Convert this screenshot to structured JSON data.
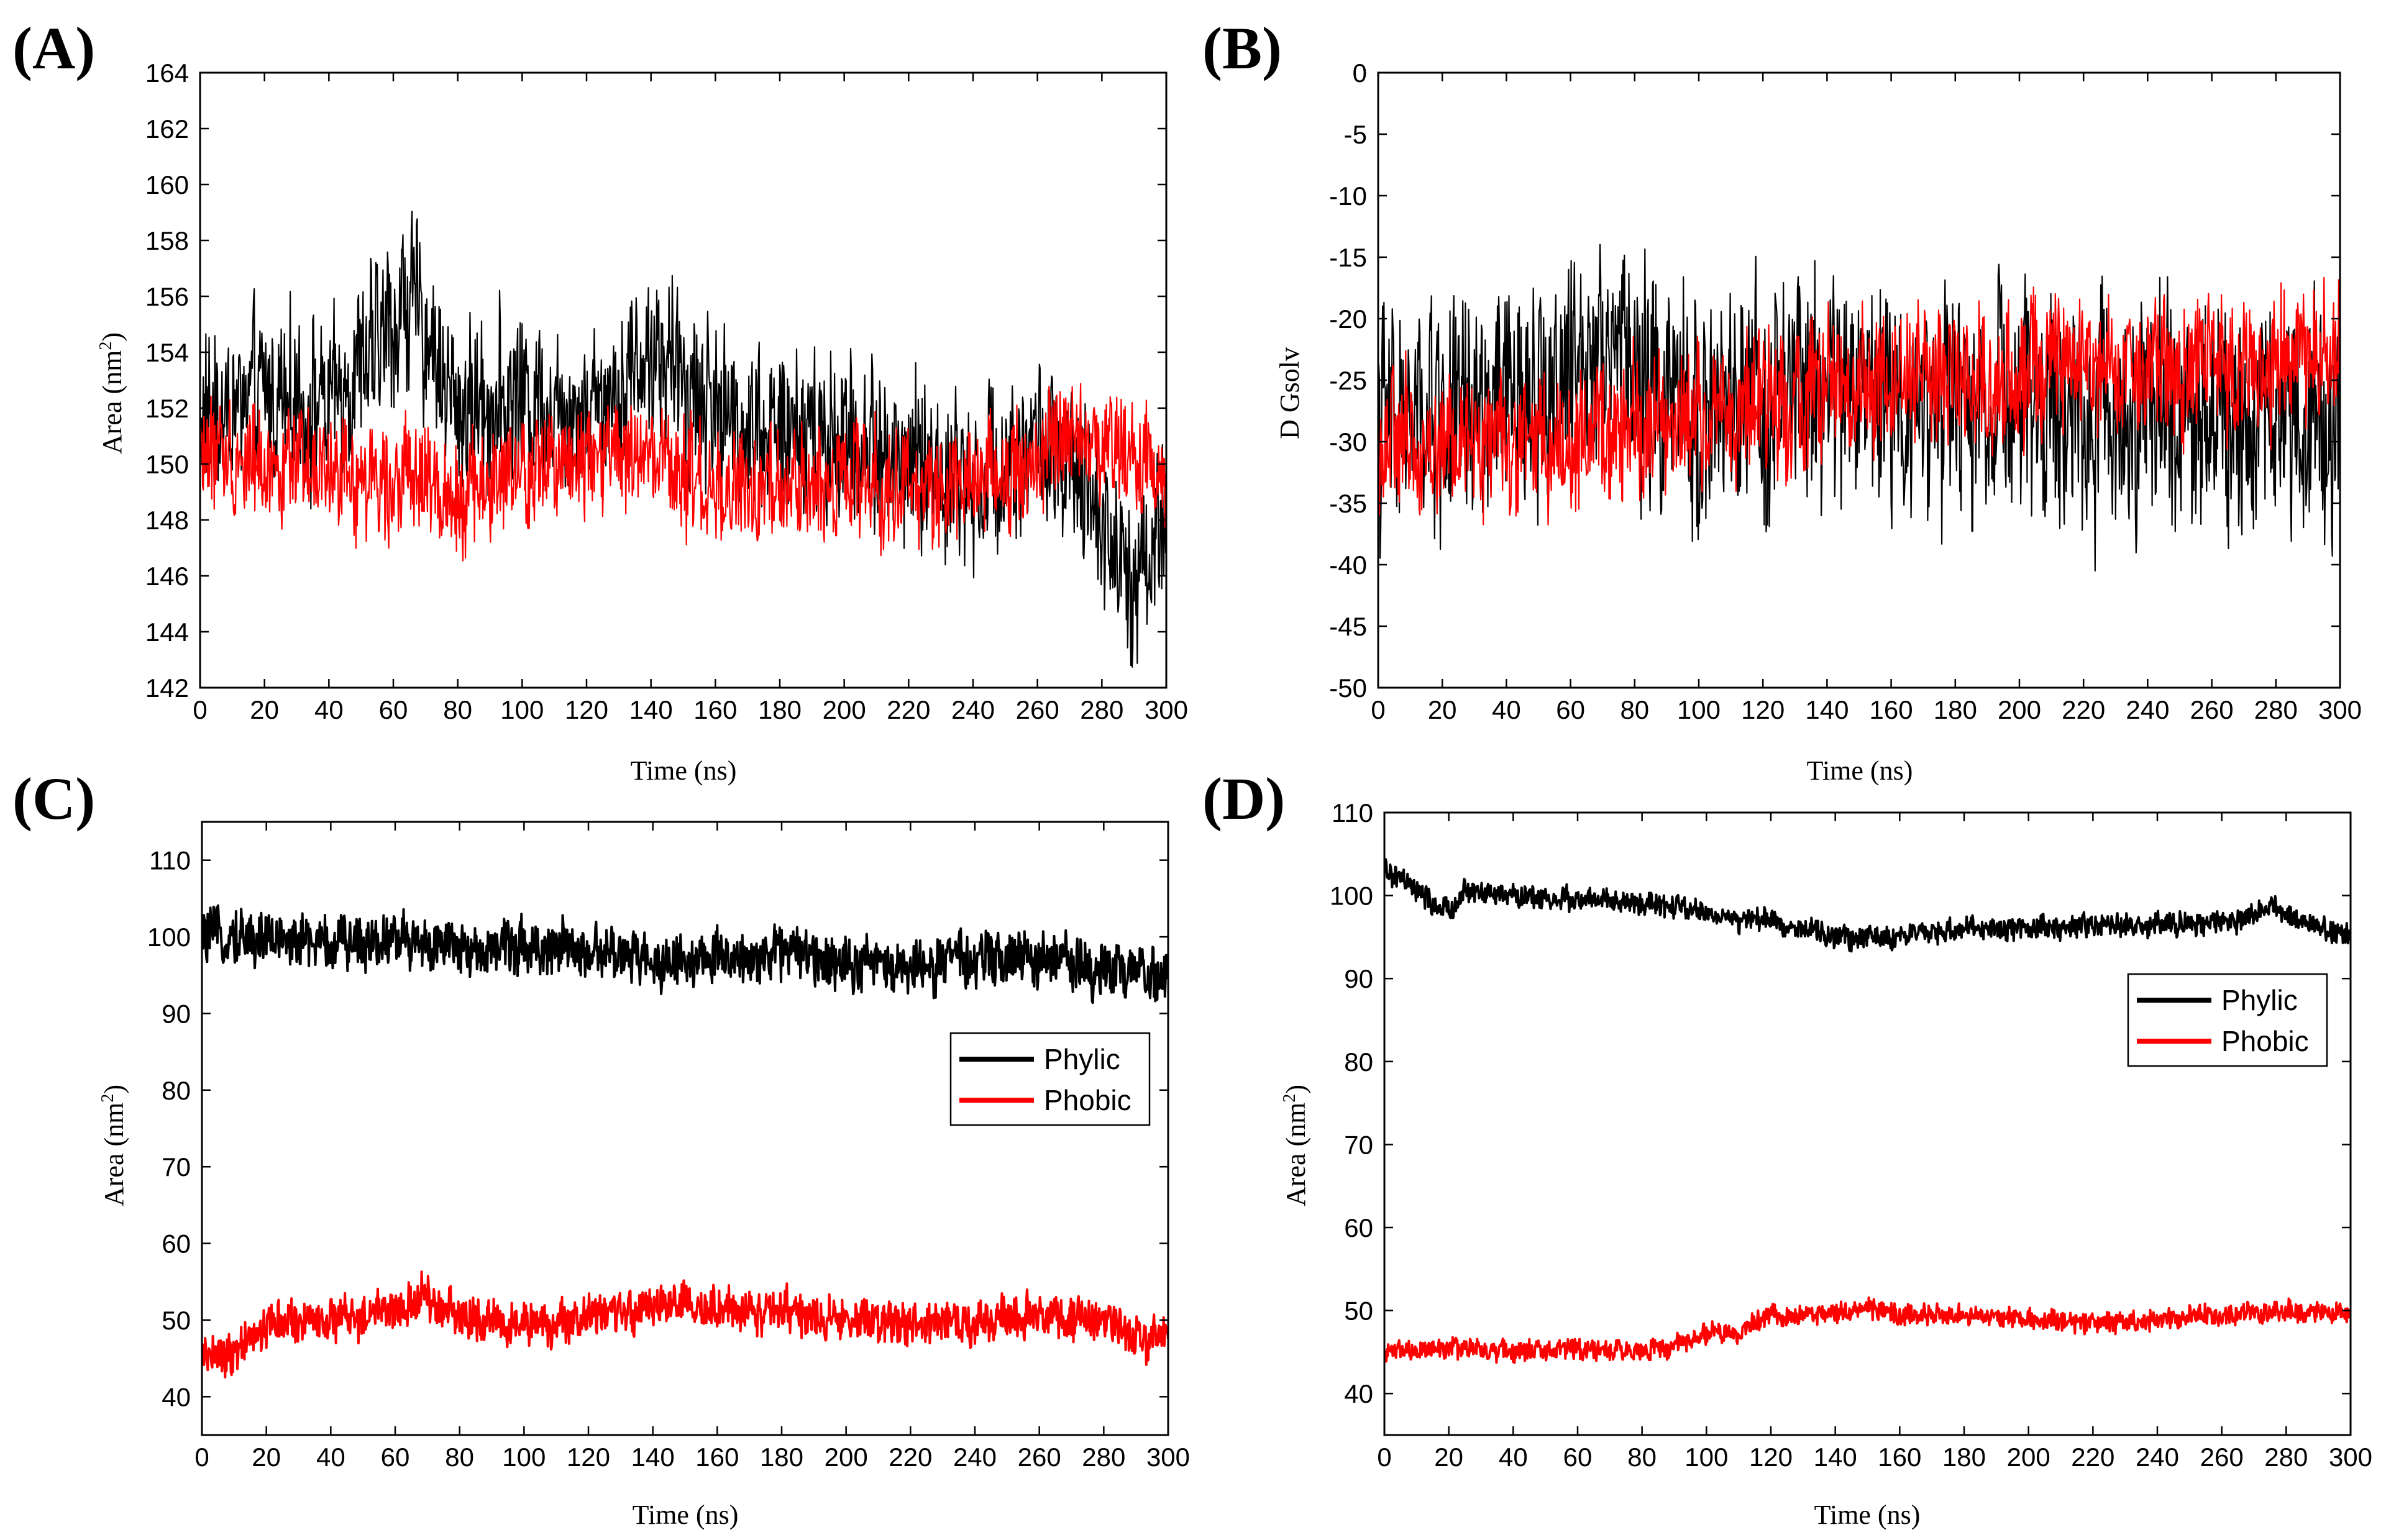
{
  "colors": {
    "phylic": "#000000",
    "phobic": "#ff0000",
    "frame": "#000000",
    "background": "#ffffff"
  },
  "chart_data": [
    {
      "panel": "(A)",
      "type": "line",
      "title": "",
      "xlabel": "Time (ns)",
      "ylabel": "Area (nm2)",
      "ylabel_main": "Area (nm",
      "ylabel_sup": "2",
      "ylabel_tail": ")",
      "xlim": [
        0,
        300
      ],
      "ylim": [
        142,
        164
      ],
      "xticks": [
        0,
        20,
        40,
        60,
        80,
        100,
        120,
        140,
        160,
        180,
        200,
        220,
        240,
        260,
        280,
        300
      ],
      "yticks": [
        142,
        144,
        146,
        148,
        150,
        152,
        154,
        156,
        158,
        160,
        162,
        164
      ],
      "legend": null,
      "series": [
        {
          "name": "Phylic",
          "color": "#000000",
          "x": [
            0,
            20,
            40,
            60,
            65,
            80,
            100,
            120,
            140,
            160,
            180,
            200,
            220,
            240,
            260,
            280,
            290,
            300
          ],
          "values": [
            151.5,
            152.5,
            152,
            155,
            156,
            152,
            152.5,
            152,
            154,
            152,
            151,
            151,
            150,
            149.5,
            151,
            148,
            146,
            148
          ],
          "noise": 2.4
        },
        {
          "name": "Phobic",
          "color": "#ff0000",
          "x": [
            0,
            20,
            40,
            60,
            80,
            100,
            120,
            140,
            160,
            180,
            200,
            220,
            240,
            260,
            270,
            280,
            300
          ],
          "values": [
            150.5,
            150,
            149.5,
            149.5,
            149,
            149.5,
            150.5,
            150,
            149,
            149,
            149.5,
            149,
            149.5,
            150,
            151,
            150.5,
            150
          ],
          "noise": 1.6
        }
      ]
    },
    {
      "panel": "(B)",
      "type": "line",
      "title": "",
      "xlabel": "Time (ns)",
      "ylabel": "D Gsolv",
      "xlim": [
        0,
        300
      ],
      "ylim": [
        -50,
        0
      ],
      "xticks": [
        0,
        20,
        40,
        60,
        80,
        100,
        120,
        140,
        160,
        180,
        200,
        220,
        240,
        260,
        280,
        300
      ],
      "yticks": [
        -50,
        -45,
        -40,
        -35,
        -30,
        -25,
        -20,
        -15,
        -10,
        -5,
        0
      ],
      "legend": null,
      "series": [
        {
          "name": "Phylic",
          "color": "#000000",
          "x": [
            0,
            20,
            40,
            60,
            70,
            80,
            100,
            120,
            140,
            160,
            180,
            200,
            220,
            240,
            260,
            280,
            300
          ],
          "values": [
            -29,
            -28,
            -27,
            -25,
            -20,
            -25,
            -28,
            -27,
            -25,
            -26,
            -27,
            -27,
            -28,
            -27,
            -28,
            -27,
            -28
          ],
          "noise": 7.5
        },
        {
          "name": "Phobic",
          "color": "#ff0000",
          "x": [
            0,
            20,
            40,
            60,
            80,
            100,
            120,
            140,
            160,
            180,
            200,
            220,
            240,
            260,
            280,
            300
          ],
          "values": [
            -30,
            -30,
            -30,
            -30,
            -29,
            -28,
            -27,
            -25.5,
            -25,
            -25,
            -24.5,
            -24.5,
            -24,
            -24,
            -23.5,
            -23
          ],
          "noise": 4.5
        }
      ]
    },
    {
      "panel": "(C)",
      "type": "line",
      "title": "",
      "xlabel": "Time (ns)",
      "ylabel": "Area (nm2)",
      "ylabel_main": "Area (nm",
      "ylabel_sup": "2",
      "ylabel_tail": ")",
      "xlim": [
        0,
        300
      ],
      "ylim": [
        35,
        115
      ],
      "xticks": [
        0,
        20,
        40,
        60,
        80,
        100,
        120,
        140,
        160,
        180,
        200,
        220,
        240,
        260,
        280,
        300
      ],
      "yticks": [
        40,
        50,
        60,
        70,
        80,
        90,
        100,
        110
      ],
      "legend": {
        "position": "center-right",
        "entries": [
          "Phylic",
          "Phobic"
        ]
      },
      "series": [
        {
          "name": "Phylic",
          "color": "#000000",
          "x": [
            0,
            20,
            40,
            60,
            80,
            100,
            120,
            140,
            160,
            180,
            200,
            220,
            240,
            260,
            280,
            300
          ],
          "values": [
            100,
            100,
            99,
            100,
            98,
            99,
            98,
            97,
            97,
            98,
            97,
            96,
            97,
            97,
            96,
            95
          ],
          "noise": 2.8
        },
        {
          "name": "Phobic",
          "color": "#ff0000",
          "x": [
            0,
            10,
            15,
            20,
            40,
            60,
            70,
            80,
            100,
            110,
            120,
            140,
            150,
            160,
            180,
            200,
            220,
            240,
            260,
            280,
            300
          ],
          "values": [
            45,
            45.5,
            47,
            49.5,
            50,
            51.5,
            53,
            50.5,
            49.5,
            49,
            50.5,
            51.5,
            52,
            51,
            51,
            50,
            49.5,
            49.5,
            51,
            49.5,
            47
          ],
          "noise": 2.3
        }
      ]
    },
    {
      "panel": "(D)",
      "type": "line",
      "title": "",
      "xlabel": "Time (ns)",
      "ylabel": "Area (nm2)",
      "ylabel_main": "Area (nm",
      "ylabel_sup": "2",
      "ylabel_tail": ")",
      "xlim": [
        0,
        300
      ],
      "ylim": [
        35,
        110
      ],
      "xticks": [
        0,
        20,
        40,
        60,
        80,
        100,
        120,
        140,
        160,
        180,
        200,
        220,
        240,
        260,
        280,
        300
      ],
      "yticks": [
        40,
        50,
        60,
        70,
        80,
        90,
        100,
        110
      ],
      "legend": {
        "position": "upper-right",
        "entries": [
          "Phylic",
          "Phobic"
        ]
      },
      "series": [
        {
          "name": "Phylic",
          "color": "#000000",
          "x": [
            0,
            5,
            15,
            20,
            25,
            40,
            60,
            80,
            100,
            110,
            120,
            140,
            160,
            180,
            200,
            220,
            240,
            260,
            275,
            290,
            300
          ],
          "values": [
            103,
            102,
            99,
            98,
            100.5,
            100,
            99.5,
            99,
            98,
            97,
            97,
            95,
            95,
            96,
            96,
            96.5,
            96.5,
            96.5,
            98.5,
            96,
            95.5
          ],
          "noise": 1.1
        },
        {
          "name": "Phobic",
          "color": "#ff0000",
          "x": [
            0,
            20,
            40,
            60,
            80,
            90,
            100,
            110,
            120,
            140,
            150,
            160,
            180,
            200,
            220,
            240,
            260,
            280,
            300
          ],
          "values": [
            45,
            45.5,
            45,
            45.5,
            45,
            46,
            47,
            47.5,
            49.5,
            49.5,
            50.5,
            49.5,
            49.5,
            49,
            48.5,
            49,
            49.5,
            50,
            49.5
          ],
          "noise": 1.0
        }
      ]
    }
  ]
}
